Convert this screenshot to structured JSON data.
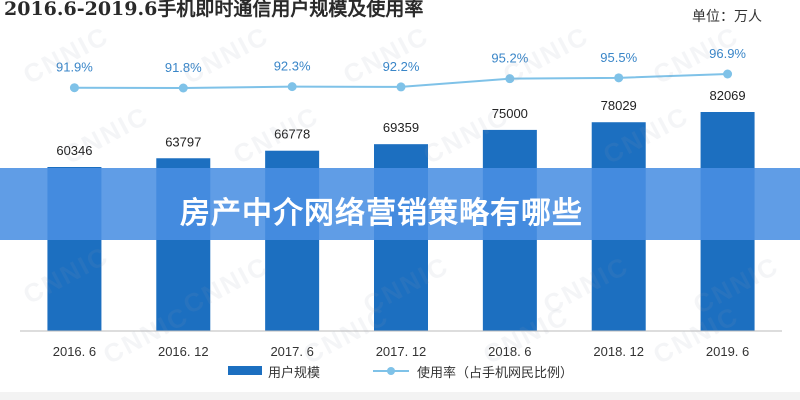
{
  "title": "2016.6-2019.6手机即时通信用户规模及使用率",
  "unit_label": "单位：万人",
  "banner": "房产中介网络营销策略有哪些",
  "watermark": "CNNIC",
  "colors": {
    "bar": "#1c6fc0",
    "line": "#7fc2e8",
    "banner": "#4a90e2",
    "text": "#333333",
    "pct_text": "#3a86c8"
  },
  "chart_data": {
    "type": "bar",
    "categories": [
      "2016. 6",
      "2016. 12",
      "2017. 6",
      "2017. 12",
      "2018. 6",
      "2018. 12",
      "2019. 6"
    ],
    "series": [
      {
        "name": "用户规模",
        "type": "bar",
        "values": [
          60346,
          63797,
          66778,
          69359,
          75000,
          78029,
          82069
        ]
      },
      {
        "name": "使用率（占手机网民比例）",
        "type": "line",
        "values": [
          91.9,
          91.8,
          92.3,
          92.2,
          95.2,
          95.5,
          96.9
        ],
        "labels": [
          "91.9%",
          "91.8%",
          "92.3%",
          "92.2%",
          "95.2%",
          "95.5%",
          "96.9%"
        ]
      }
    ],
    "bar_value_labels": [
      "60346",
      "63797",
      "66778",
      "69359",
      "75000",
      "78029",
      "82069"
    ],
    "ylim_bars": [
      0,
      90000
    ],
    "ylim_line": [
      0,
      100
    ],
    "grid": false,
    "legend_position": "bottom"
  }
}
